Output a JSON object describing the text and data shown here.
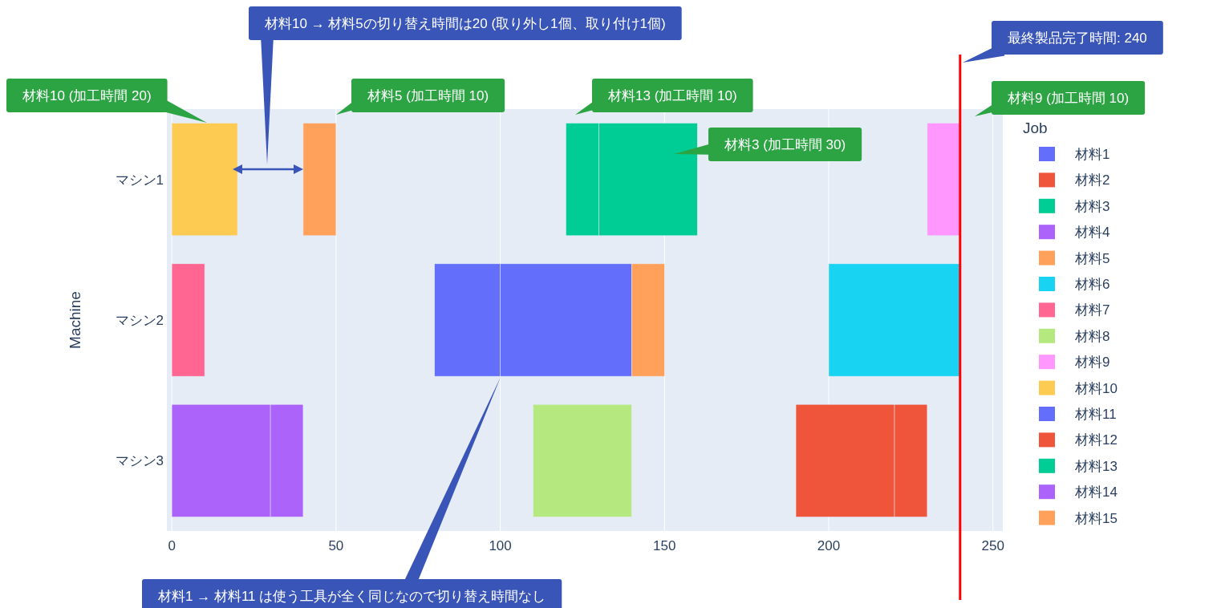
{
  "chart_data": {
    "type": "bar",
    "orientation": "horizontal",
    "categories": [
      "マシン1",
      "マシン2",
      "マシン3"
    ],
    "ylabel": "Machine",
    "legend_title": "Job",
    "legend": "right",
    "grid": "x",
    "xlim": [
      -1,
      253
    ],
    "xticks": [
      0,
      50,
      100,
      150,
      200,
      250
    ],
    "series": [
      {
        "name": "材料1",
        "color": "#636efa",
        "values": [
          null,
          20,
          null
        ],
        "base": [
          null,
          80,
          null
        ]
      },
      {
        "name": "材料2",
        "color": "#ef553b",
        "values": [
          null,
          null,
          10
        ],
        "base": [
          null,
          null,
          220
        ]
      },
      {
        "name": "材料3",
        "color": "#00cc96",
        "values": [
          30,
          null,
          null
        ],
        "base": [
          130,
          null,
          null
        ]
      },
      {
        "name": "材料4",
        "color": "#ab63fa",
        "values": [
          null,
          null,
          10
        ],
        "base": [
          null,
          null,
          30
        ]
      },
      {
        "name": "材料5",
        "color": "#ffa15a",
        "values": [
          10,
          null,
          null
        ],
        "base": [
          40,
          null,
          null
        ]
      },
      {
        "name": "材料6",
        "color": "#19d3f3",
        "values": [
          null,
          40,
          null
        ],
        "base": [
          null,
          200,
          null
        ]
      },
      {
        "name": "材料7",
        "color": "#ff6692",
        "values": [
          null,
          10,
          null
        ],
        "base": [
          null,
          0,
          null
        ]
      },
      {
        "name": "材料8",
        "color": "#b6e880",
        "values": [
          null,
          null,
          30
        ],
        "base": [
          null,
          null,
          110
        ]
      },
      {
        "name": "材料9",
        "color": "#ff97ff",
        "values": [
          10,
          null,
          null
        ],
        "base": [
          230,
          null,
          null
        ]
      },
      {
        "name": "材料10",
        "color": "#fecb52",
        "values": [
          20,
          null,
          null
        ],
        "base": [
          0,
          null,
          null
        ]
      },
      {
        "name": "材料11",
        "color": "#636efa",
        "values": [
          null,
          40,
          null
        ],
        "base": [
          null,
          100,
          null
        ]
      },
      {
        "name": "材料12",
        "color": "#ef553b",
        "values": [
          null,
          null,
          30
        ],
        "base": [
          null,
          null,
          190
        ]
      },
      {
        "name": "材料13",
        "color": "#00cc96",
        "values": [
          10,
          null,
          null
        ],
        "base": [
          120,
          null,
          null
        ]
      },
      {
        "name": "材料14",
        "color": "#ab63fa",
        "values": [
          null,
          null,
          30
        ],
        "base": [
          null,
          null,
          0
        ]
      },
      {
        "name": "材料15",
        "color": "#ffa15a",
        "values": [
          null,
          10,
          null
        ],
        "base": [
          null,
          140,
          null
        ]
      }
    ],
    "ref_lines": [
      {
        "axis": "x",
        "value": 240,
        "label": "最終製品完了時間: 240",
        "color": "#ff0000"
      }
    ],
    "annotations": [
      "材料10 (加工時間 20)",
      "材料5 (加工時間 10)",
      "材料13 (加工時間 10)",
      "材料3 (加工時間 30)",
      "材料9 (加工時間 10)",
      "材料10 → 材料5の切り替え時間は20 (取り外し1個、取り付け1個)",
      "材料1 → 材料11 は使う工具が全く同じなので切り替え時間なし"
    ]
  }
}
